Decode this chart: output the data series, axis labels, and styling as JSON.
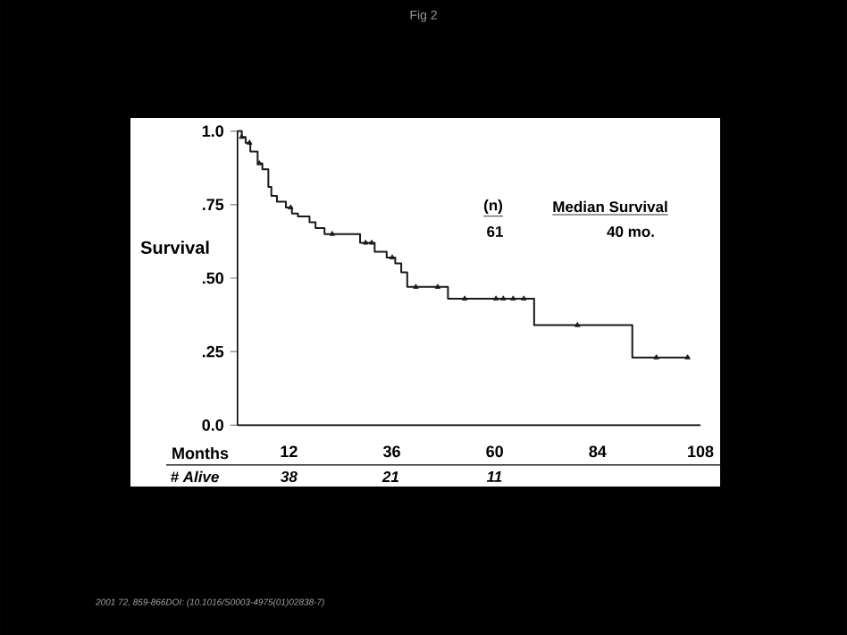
{
  "chart_data": {
    "type": "step",
    "title": "Fig 2",
    "xlabel": "Months",
    "ylabel": "Survival",
    "xlim": [
      0,
      108
    ],
    "xticks": [
      12,
      36,
      60,
      84,
      108
    ],
    "ylim": [
      0,
      1
    ],
    "yticks": [
      {
        "value": 0,
        "label": "0.0"
      },
      {
        "value": 0.25,
        "label": ".25"
      },
      {
        "value": 0.5,
        "label": ".50"
      },
      {
        "value": 0.75,
        "label": ".75"
      },
      {
        "value": 1,
        "label": "1.0"
      }
    ],
    "grid": false,
    "line_style": "solid",
    "series": [
      {
        "color": "#1a1a1a",
        "marker": "none",
        "x": [
          0,
          1.0,
          1.9,
          3.0,
          4.7,
          5.8,
          7.2,
          7.9,
          9.2,
          11.3,
          12.7,
          14.1,
          16.8,
          18.2,
          20.3,
          28.6,
          32.0,
          34.8,
          36.8,
          38.2,
          39.6,
          49.1,
          69.2,
          92.1,
          105.5
        ],
        "values": [
          1.0,
          0.98,
          0.96,
          0.93,
          0.89,
          0.87,
          0.81,
          0.78,
          0.76,
          0.74,
          0.72,
          0.71,
          0.69,
          0.67,
          0.65,
          0.62,
          0.59,
          0.57,
          0.55,
          0.52,
          0.47,
          0.43,
          0.34,
          0.23,
          0.23
        ]
      },
      {
        "type": "scatter",
        "color": "#1a1a1a",
        "marker": "triangle",
        "x": [
          1.0,
          2.8,
          5.1,
          12.4,
          22.1,
          29.9,
          31.3,
          36.1,
          41.6,
          46.7,
          53.0,
          60.3,
          62.0,
          64.3,
          66.8,
          79.3,
          97.7,
          105.0
        ],
        "values": [
          0.98,
          0.96,
          0.89,
          0.74,
          0.65,
          0.62,
          0.62,
          0.57,
          0.47,
          0.47,
          0.43,
          0.43,
          0.43,
          0.43,
          0.43,
          0.34,
          0.23,
          0.23
        ]
      }
    ],
    "annotations": [
      "(n)",
      "61",
      "Median Survival",
      "40 mo.",
      "# Alive",
      "38",
      "21",
      "11",
      "2001 72, 859-866DOI: (10.1016/S0003-4975(01)02838-7)"
    ]
  }
}
